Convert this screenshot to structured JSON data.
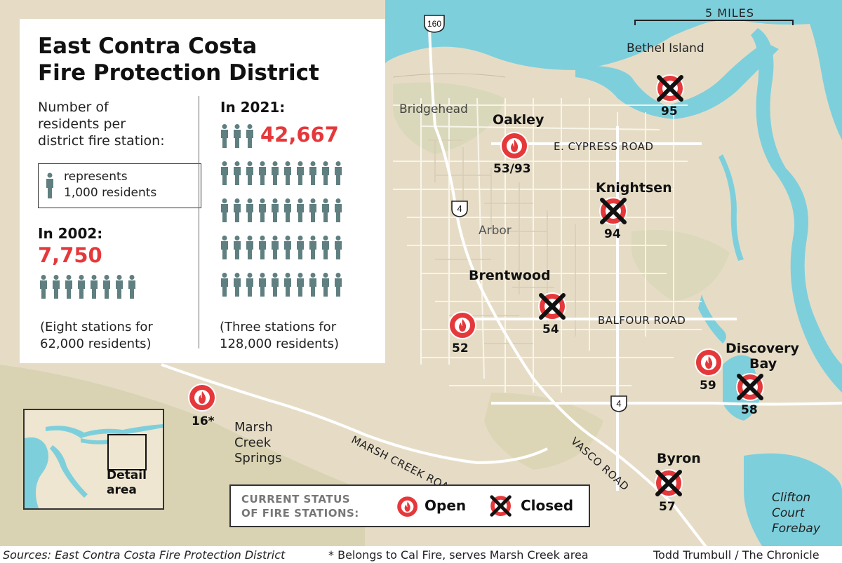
{
  "title_line1": "East Contra Costa",
  "title_line2": "Fire Protection District",
  "subtitle": "Number of residents per district fire station:",
  "subtitle_lines": [
    "Number of",
    "residents per",
    "district fire station:"
  ],
  "legend_icon": {
    "line1": "represents",
    "line2": "1,000 residents"
  },
  "year_2002": {
    "label": "In 2002:",
    "value": "7,750",
    "icons": 8,
    "note_line1": "(Eight stations for",
    "note_line2": "62,000 residents)"
  },
  "year_2021": {
    "label": "In 2021:",
    "value": "42,667",
    "icons": 43,
    "note_line1": "(Three stations for",
    "note_line2": "128,000 residents)"
  },
  "scale": {
    "label": "5 MILES"
  },
  "places": {
    "bethel_island": "Bethel Island",
    "bridgehead": "Bridgehead",
    "oakley": "Oakley",
    "knightsen": "Knightsen",
    "arbor": "Arbor",
    "brentwood": "Brentwood",
    "discovery_line1": "Discovery",
    "discovery_line2": "Bay",
    "byron": "Byron",
    "marsh_line1": "Marsh",
    "marsh_line2": "Creek",
    "marsh_line3": "Springs",
    "clifton_line1": "Clifton",
    "clifton_line2": "Court",
    "clifton_line3": "Forebay"
  },
  "roads": {
    "cypress": "E. CYPRESS ROAD",
    "balfour": "BALFOUR ROAD",
    "marsh_creek": "MARSH CREEK ROAD",
    "vasco": "VASCO ROAD"
  },
  "highways": {
    "h160": "160",
    "h4a": "4",
    "h4b": "4"
  },
  "stations": {
    "s95": {
      "label": "95",
      "status": "closed"
    },
    "s53": {
      "label": "53/93",
      "status": "open"
    },
    "s94": {
      "label": "94",
      "status": "closed"
    },
    "s54": {
      "label": "54",
      "status": "closed"
    },
    "s52": {
      "label": "52",
      "status": "open"
    },
    "s59": {
      "label": "59",
      "status": "open"
    },
    "s58": {
      "label": "58",
      "status": "closed"
    },
    "s57": {
      "label": "57",
      "status": "closed"
    },
    "s16": {
      "label": "16*",
      "status": "open"
    }
  },
  "status_legend": {
    "line1": "CURRENT STATUS",
    "line2": "OF FIRE STATIONS:",
    "open": "Open",
    "closed": "Closed"
  },
  "inset": {
    "line1": "Detail",
    "line2": "area"
  },
  "footer": {
    "sources": "Sources: East Contra Costa Fire Protection District",
    "note": "* Belongs to Cal Fire, serves Marsh Creek area",
    "credit": "Todd Trumbull / The Chronicle"
  },
  "colors": {
    "open_red": "#e5383b",
    "water": "#7ecfdc",
    "people": "#5f7f80",
    "land": "#e6dcc6"
  }
}
